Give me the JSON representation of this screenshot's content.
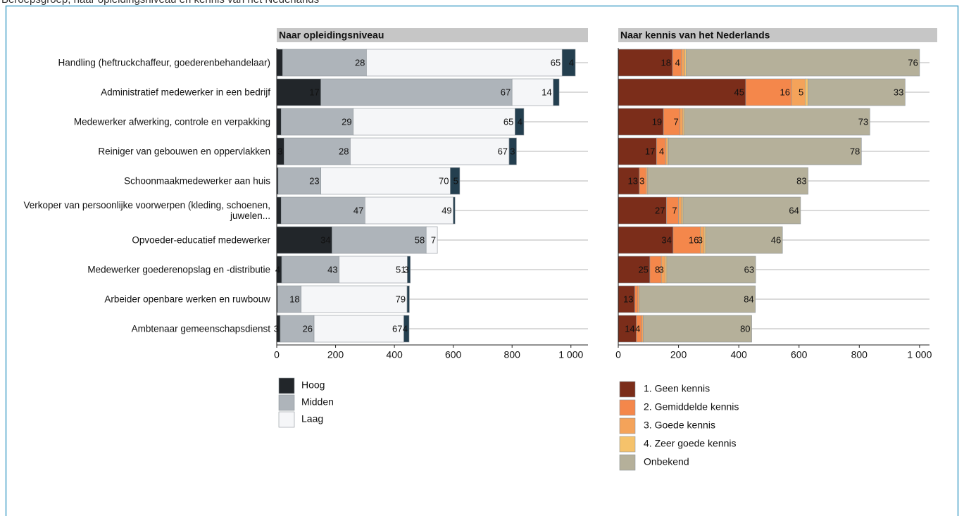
{
  "header": {
    "title": "Beroepsgroep, naar opleidingsniveau en kennis van het Nederlands"
  },
  "chart_data": [
    {
      "type": "bar",
      "orientation": "horizontal",
      "stacked": true,
      "title": "Naar opleidingsniveau",
      "categories": [
        "Handling (heftruckchaffeur, goederenbehandelaar)",
        "Administratief medewerker in een bedrijf",
        "Medewerker afwerking, controle en verpakking",
        "Reiniger van gebouwen en oppervlakken",
        "Schoonmaakmedewerker aan huis",
        "Verkoper van persoonlijke voorwerpen (kleding, schoenen, juwelen...",
        "Opvoeder-educatief medewerker",
        "Medewerker goederenopslag en -distributie",
        "Arbeider openbare werken en ruwbouw",
        "Ambtenaar gemeenschapsdienst"
      ],
      "series": [
        {
          "name": "Hoog",
          "color": "#22262a",
          "values": [
            20,
            150,
            15,
            25,
            5,
            15,
            188,
            17,
            3,
            12
          ],
          "percentages": [
            null,
            17,
            null,
            3,
            null,
            null,
            34,
            4,
            null,
            3
          ]
        },
        {
          "name": "Midden",
          "color": "#aeb4ba",
          "values": [
            285,
            650,
            245,
            225,
            145,
            285,
            320,
            195,
            80,
            115
          ],
          "percentages": [
            28,
            67,
            29,
            28,
            23,
            47,
            58,
            43,
            18,
            26
          ]
        },
        {
          "name": "Laag",
          "color": "#f5f6f8",
          "values": [
            665,
            140,
            550,
            540,
            440,
            300,
            38,
            232,
            360,
            305
          ],
          "percentages": [
            65,
            14,
            65,
            67,
            70,
            49,
            7,
            51,
            79,
            67
          ]
        },
        {
          "color": "#243f4f",
          "values": [
            45,
            20,
            30,
            25,
            32,
            6,
            0,
            10,
            8,
            18
          ],
          "percentages": [
            4,
            null,
            4,
            3,
            5,
            null,
            null,
            3,
            null,
            4
          ]
        }
      ],
      "xlim": [
        0,
        1058
      ],
      "xticks": [
        0,
        200,
        400,
        600,
        800,
        {
          "value": 1000,
          "label": "1 000"
        }
      ]
    },
    {
      "type": "bar",
      "orientation": "horizontal",
      "stacked": true,
      "title": "Naar kennis van het Nederlands",
      "series": [
        {
          "name": "1. Geen kennis",
          "color": "#7b2d1a",
          "values": [
            180,
            423,
            150,
            127,
            70,
            160,
            182,
            105,
            55,
            60
          ],
          "percentages": [
            18,
            45,
            19,
            17,
            13,
            27,
            34,
            25,
            13,
            14
          ]
        },
        {
          "name": "2. Gemiddelde kennis",
          "color": "#f4874b",
          "values": [
            30,
            152,
            55,
            30,
            22,
            40,
            90,
            38,
            10,
            18
          ],
          "percentages": [
            4,
            16,
            7,
            4,
            3,
            7,
            16,
            8,
            null,
            4
          ]
        },
        {
          "name": "3. Goede kennis",
          "color": "#f4a35a",
          "values": [
            10,
            45,
            10,
            5,
            5,
            10,
            13,
            13,
            5,
            5
          ],
          "percentages": [
            null,
            5,
            null,
            null,
            null,
            null,
            3,
            3,
            null,
            null
          ]
        },
        {
          "name": "4. Zeer goede kennis",
          "color": "#f5c26b",
          "values": [
            5,
            10,
            5,
            5,
            3,
            5,
            5,
            5,
            0,
            0
          ],
          "percentages": [
            null,
            null,
            null,
            null,
            null,
            null,
            null,
            null,
            null,
            null
          ]
        },
        {
          "name": "Onbekend",
          "color": "#b5b09a",
          "values": [
            775,
            322,
            615,
            640,
            530,
            390,
            255,
            295,
            385,
            360
          ],
          "percentages": [
            76,
            33,
            73,
            78,
            83,
            64,
            46,
            63,
            84,
            80
          ]
        }
      ],
      "xlim": [
        0,
        1033
      ],
      "xticks": [
        0,
        200,
        400,
        600,
        800,
        {
          "value": 1000,
          "label": "1 000"
        }
      ]
    }
  ]
}
